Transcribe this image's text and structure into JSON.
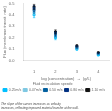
{
  "chart_data": {
    "type": "scatter",
    "xlabel": "log (concentration)  →  (g/L)",
    "ylabel": "Flux (membrane transit  rate)",
    "legend_title": "Fluid recirculation speeds:",
    "caption": "The slope of the curves increases as velocity\nincreases, reflecting improved material transfer at the wall.",
    "legend": "bottom",
    "grid": false,
    "x": [
      1,
      2,
      3,
      4
    ],
    "series": [
      {
        "name": "0.25m/s",
        "color": "#00bfff",
        "marker": "square",
        "values": [
          0.4,
          0.2,
          0.1,
          0.048
        ],
        "yerr": [
          0.025,
          0.018,
          0.01,
          0.005
        ]
      },
      {
        "name": "0.47m/s",
        "color": "#7ec8e3",
        "marker": "square",
        "values": [
          0.42,
          0.215,
          0.105,
          0.053
        ],
        "yerr": [
          0.02,
          0.015,
          0.008,
          0.004
        ]
      },
      {
        "name": "0.50 m/s",
        "color": "#005f9e",
        "marker": "square",
        "values": [
          0.44,
          0.225,
          0.112,
          0.058
        ],
        "yerr": [
          0.025,
          0.018,
          0.009,
          0.004
        ]
      },
      {
        "name": "0.80 m/s",
        "color": "#003080",
        "marker": "square",
        "values": [
          0.455,
          0.235,
          0.12,
          0.062
        ],
        "yerr": [
          0.025,
          0.018,
          0.009,
          0.004
        ]
      },
      {
        "name": "1.10 m/s",
        "color": "#111111",
        "marker": "square",
        "values": [
          0.47,
          0.25,
          0.128,
          0.068
        ],
        "yerr": [
          0.022,
          0.018,
          0.009,
          0.004
        ]
      }
    ],
    "xlim": [
      0.5,
      4.5
    ],
    "ylim": [
      0,
      0.5
    ],
    "xticks": [
      1,
      2,
      3,
      4
    ],
    "yticks": [
      {
        "value": 0.0,
        "label": "0.0"
      },
      0.1,
      0.2,
      0.3,
      0.4,
      0.5
    ]
  }
}
